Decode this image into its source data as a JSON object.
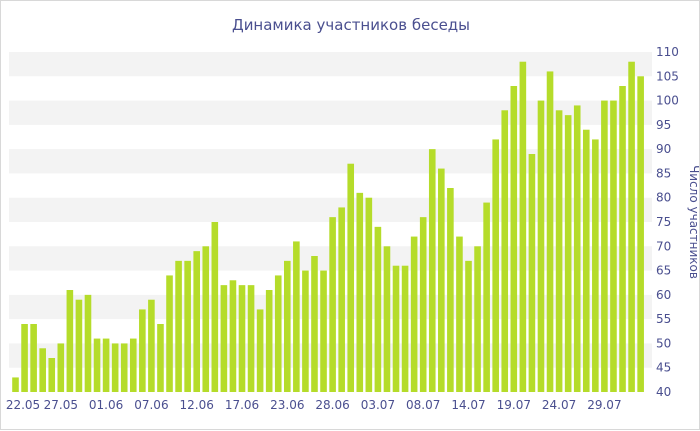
{
  "chart_data": {
    "type": "bar",
    "title": "Динамика участников беседы",
    "xlabel": "",
    "ylabel": "Число участников",
    "ylim": [
      40,
      110
    ],
    "yticks": [
      40,
      45,
      50,
      55,
      60,
      65,
      70,
      75,
      80,
      85,
      90,
      95,
      100,
      105,
      110
    ],
    "y_axis_position": "right",
    "grid": "alternating horizontal bands",
    "start_date": "22.05",
    "xtick_labels": [
      "22.05",
      "27.05",
      "01.06",
      "07.06",
      "12.06",
      "17.06",
      "23.06",
      "28.06",
      "03.07",
      "08.07",
      "14.07",
      "19.07",
      "24.07",
      "29.07"
    ],
    "xtick_indices": [
      0,
      5,
      10,
      15,
      20,
      25,
      30,
      35,
      40,
      45,
      50,
      55,
      60,
      65
    ],
    "bar_color": "#b5dc2a",
    "values": [
      43,
      54,
      54,
      49,
      47,
      50,
      61,
      59,
      60,
      51,
      51,
      50,
      50,
      51,
      57,
      59,
      54,
      64,
      67,
      67,
      69,
      70,
      75,
      62,
      63,
      62,
      62,
      57,
      61,
      64,
      67,
      71,
      65,
      68,
      65,
      76,
      78,
      87,
      81,
      80,
      74,
      70,
      66,
      66,
      72,
      76,
      90,
      86,
      82,
      72,
      67,
      70,
      79,
      92,
      98,
      103,
      108,
      89,
      100,
      106,
      98,
      97,
      99,
      94,
      92,
      100,
      100,
      103,
      108,
      105
    ]
  }
}
